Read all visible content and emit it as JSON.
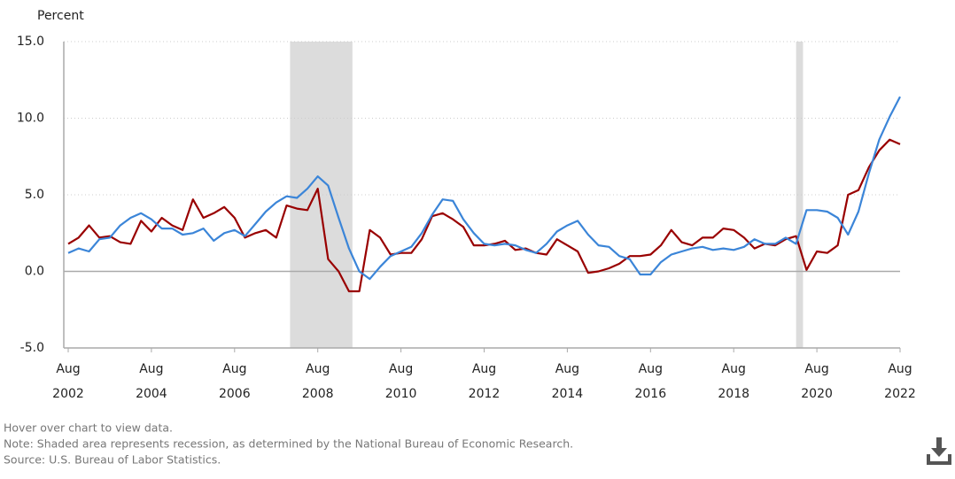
{
  "chart_data": {
    "type": "line",
    "y_label": "Percent",
    "notes": [
      "Hover over chart to view data.",
      "Note: Shaded area represents recession, as determined by the National Bureau of Economic Research.",
      "Source: U.S. Bureau of Labor Statistics."
    ],
    "x": [
      "2002-08",
      "2002-11",
      "2003-02",
      "2003-05",
      "2003-08",
      "2003-11",
      "2004-02",
      "2004-05",
      "2004-08",
      "2004-11",
      "2005-02",
      "2005-05",
      "2005-08",
      "2005-11",
      "2006-02",
      "2006-05",
      "2006-08",
      "2006-11",
      "2007-02",
      "2007-05",
      "2007-08",
      "2007-11",
      "2008-02",
      "2008-05",
      "2008-08",
      "2008-11",
      "2009-02",
      "2009-05",
      "2009-08",
      "2009-11",
      "2010-02",
      "2010-05",
      "2010-08",
      "2010-11",
      "2011-02",
      "2011-05",
      "2011-08",
      "2011-11",
      "2012-02",
      "2012-05",
      "2012-08",
      "2012-11",
      "2013-02",
      "2013-05",
      "2013-08",
      "2013-11",
      "2014-02",
      "2014-05",
      "2014-08",
      "2014-11",
      "2015-02",
      "2015-05",
      "2015-08",
      "2015-11",
      "2016-02",
      "2016-05",
      "2016-08",
      "2016-11",
      "2017-02",
      "2017-05",
      "2017-08",
      "2017-11",
      "2018-02",
      "2018-05",
      "2018-08",
      "2018-11",
      "2019-02",
      "2019-05",
      "2019-08",
      "2019-11",
      "2020-02",
      "2020-05",
      "2020-08",
      "2020-11",
      "2021-02",
      "2021-05",
      "2021-08",
      "2021-11",
      "2022-02",
      "2022-05",
      "2022-08"
    ],
    "series": [
      {
        "color": "#990000",
        "values": [
          1.8,
          2.2,
          3.0,
          2.2,
          2.3,
          1.9,
          1.8,
          3.3,
          2.6,
          3.5,
          3.0,
          2.7,
          4.7,
          3.5,
          3.8,
          4.2,
          3.5,
          2.2,
          2.5,
          2.7,
          2.2,
          4.3,
          4.1,
          4.0,
          5.4,
          0.8,
          0.0,
          -1.3,
          -1.3,
          2.7,
          2.2,
          1.1,
          1.2,
          1.2,
          2.1,
          3.6,
          3.8,
          3.4,
          2.9,
          1.7,
          1.7,
          1.8,
          2.0,
          1.4,
          1.5,
          1.2,
          1.1,
          2.1,
          1.7,
          1.3,
          -0.1,
          0.0,
          0.2,
          0.5,
          1.0,
          1.0,
          1.1,
          1.7,
          2.7,
          1.9,
          1.7,
          2.2,
          2.2,
          2.8,
          2.7,
          2.2,
          1.5,
          1.8,
          1.7,
          2.1,
          2.3,
          0.1,
          1.3,
          1.2,
          1.7,
          5.0,
          5.3,
          6.8,
          7.9,
          8.6,
          8.3
        ]
      },
      {
        "color": "#3b85d8",
        "values": [
          1.2,
          1.5,
          1.3,
          2.1,
          2.2,
          3.0,
          3.5,
          3.8,
          3.4,
          2.8,
          2.8,
          2.4,
          2.5,
          2.8,
          2.0,
          2.5,
          2.7,
          2.3,
          3.1,
          3.9,
          4.5,
          4.9,
          4.8,
          5.4,
          6.2,
          5.6,
          3.5,
          1.5,
          0.0,
          -0.5,
          0.3,
          1.0,
          1.3,
          1.6,
          2.5,
          3.7,
          4.7,
          4.6,
          3.4,
          2.5,
          1.8,
          1.7,
          1.8,
          1.7,
          1.4,
          1.2,
          1.8,
          2.6,
          3.0,
          3.3,
          2.4,
          1.7,
          1.6,
          1.0,
          0.8,
          -0.2,
          -0.2,
          0.6,
          1.1,
          1.3,
          1.5,
          1.6,
          1.4,
          1.5,
          1.4,
          1.6,
          2.1,
          1.8,
          1.8,
          2.2,
          1.8,
          4.0,
          4.0,
          3.9,
          3.5,
          2.4,
          3.9,
          6.4,
          8.6,
          10.1,
          11.4
        ]
      }
    ],
    "recessions": [
      {
        "start": "2007-12",
        "end": "2009-06"
      },
      {
        "start": "2020-02",
        "end": "2020-04"
      }
    ],
    "xlim": [
      "2002-08",
      "2022-08"
    ],
    "xticks": [
      {
        "value": "2002-08",
        "label": [
          "Aug",
          "2002"
        ]
      },
      {
        "value": "2004-08",
        "label": [
          "Aug",
          "2004"
        ]
      },
      {
        "value": "2006-08",
        "label": [
          "Aug",
          "2006"
        ]
      },
      {
        "value": "2008-08",
        "label": [
          "Aug",
          "2008"
        ]
      },
      {
        "value": "2010-08",
        "label": [
          "Aug",
          "2010"
        ]
      },
      {
        "value": "2012-08",
        "label": [
          "Aug",
          "2012"
        ]
      },
      {
        "value": "2014-08",
        "label": [
          "Aug",
          "2014"
        ]
      },
      {
        "value": "2016-08",
        "label": [
          "Aug",
          "2016"
        ]
      },
      {
        "value": "2018-08",
        "label": [
          "Aug",
          "2018"
        ]
      },
      {
        "value": "2020-08",
        "label": [
          "Aug",
          "2020"
        ]
      },
      {
        "value": "2022-08",
        "label": [
          "Aug",
          "2022"
        ]
      }
    ],
    "ylim": [
      -5,
      15
    ],
    "yticks": [
      {
        "value": -5,
        "label": "-5.0"
      },
      {
        "value": 0,
        "label": "0.0"
      },
      {
        "value": 5,
        "label": "5.0"
      },
      {
        "value": 10,
        "label": "10.0"
      },
      {
        "value": 15,
        "label": "15.0"
      }
    ],
    "grid": true
  }
}
